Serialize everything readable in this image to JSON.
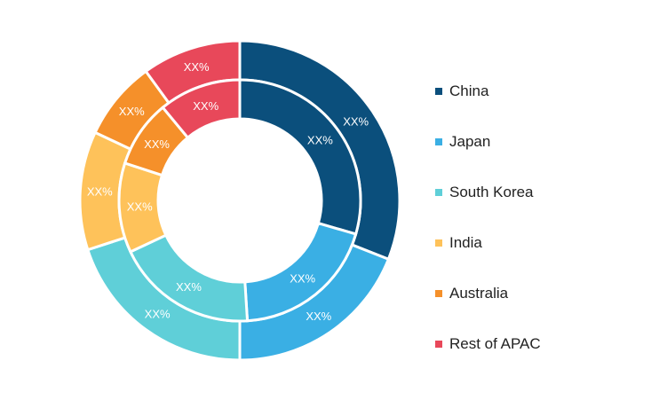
{
  "chart_data": {
    "type": "pie",
    "title": "",
    "subtitle": "",
    "legend_position": "right",
    "categories": [
      "China",
      "Japan",
      "South Korea",
      "India",
      "Australia",
      "Rest of APAC"
    ],
    "colors": [
      "#0b4f7c",
      "#3aafe4",
      "#5fcfd8",
      "#fec25a",
      "#f5902a",
      "#e8485a"
    ],
    "series": [
      {
        "ring": "outer",
        "values": [
          31,
          19,
          20,
          12,
          8,
          10
        ],
        "labels": [
          "XX%",
          "XX%",
          "XX%",
          "XX%",
          "XX%",
          "XX%"
        ]
      },
      {
        "ring": "inner",
        "values": [
          29.5,
          19.5,
          19,
          12,
          9,
          11
        ],
        "labels": [
          "XX%",
          "XX%",
          "XX%",
          "XX%",
          "XX%",
          "XX%"
        ]
      }
    ]
  },
  "legend": {
    "items": [
      {
        "label": "China",
        "color": "#0b4f7c"
      },
      {
        "label": "Japan",
        "color": "#3aafe4"
      },
      {
        "label": "South Korea",
        "color": "#5fcfd8"
      },
      {
        "label": "India",
        "color": "#fec25a"
      },
      {
        "label": "Australia",
        "color": "#f5902a"
      },
      {
        "label": "Rest of APAC",
        "color": "#e8485a"
      }
    ]
  }
}
